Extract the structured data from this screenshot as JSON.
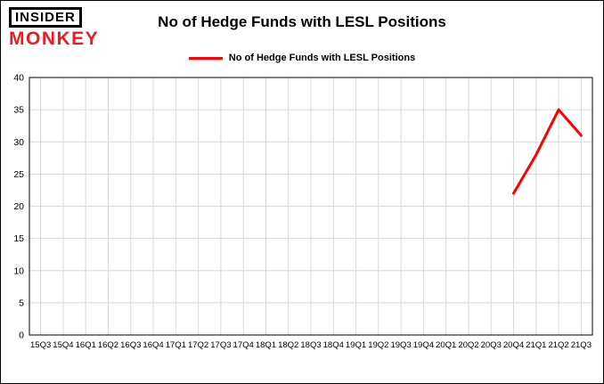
{
  "logo": {
    "line1": "INSIDER",
    "line2": "MONKEY",
    "line1_color": "#000000",
    "line2_color": "#ed1c24"
  },
  "header": {
    "title": "No of Hedge Funds with LESL Positions"
  },
  "legend": {
    "label": "No of Hedge Funds with LESL Positions",
    "line_color": "#ff0000"
  },
  "chart_data": {
    "type": "line",
    "title": "No of Hedge Funds with LESL Positions",
    "categories": [
      "15Q3",
      "15Q4",
      "16Q1",
      "16Q2",
      "16Q3",
      "16Q4",
      "17Q1",
      "17Q2",
      "17Q3",
      "17Q4",
      "18Q1",
      "18Q2",
      "18Q3",
      "18Q4",
      "19Q1",
      "19Q2",
      "19Q3",
      "19Q4",
      "20Q1",
      "20Q2",
      "20Q3",
      "20Q4",
      "21Q1",
      "21Q2",
      "21Q3"
    ],
    "series": [
      {
        "name": "No of Hedge Funds with LESL Positions",
        "color": "#ff0000",
        "values": [
          null,
          null,
          null,
          null,
          null,
          null,
          null,
          null,
          null,
          null,
          null,
          null,
          null,
          null,
          null,
          null,
          null,
          null,
          null,
          null,
          null,
          22,
          28,
          35,
          31
        ]
      }
    ],
    "xlabel": "",
    "ylabel": "",
    "ylim": [
      0,
      40
    ],
    "ytick_interval": 5,
    "grid": true,
    "grid_color": "#d8d8d8",
    "axis_color": "#000000",
    "legend_position": "top"
  }
}
